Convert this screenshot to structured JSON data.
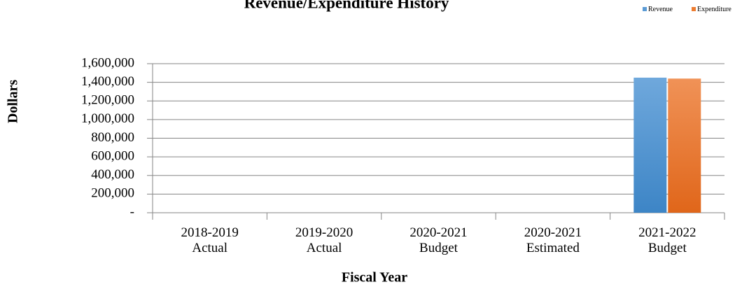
{
  "chart_data": {
    "type": "bar",
    "title": "Revenue/Expenditure History",
    "categories": [
      "2018-2019 Actual",
      "2019-2020 Actual",
      "2020-2021 Budget",
      "2020-2021 Estimated",
      "2021-2022 Budget"
    ],
    "series": [
      {
        "name": "Revenue",
        "color": "#5b9bd5",
        "values": [
          0,
          0,
          0,
          0,
          1450000
        ]
      },
      {
        "name": "Expenditure",
        "color": "#ed7d31",
        "values": [
          0,
          0,
          0,
          0,
          1440000
        ]
      }
    ],
    "x_label": "Fiscal Year",
    "y_label": "Dollars",
    "ylim": [
      0,
      1600000
    ],
    "yticks": [
      {
        "value": 0,
        "label": "-"
      },
      {
        "value": 200000,
        "label": "200,000"
      },
      {
        "value": 400000,
        "label": "400,000"
      },
      {
        "value": 600000,
        "label": "600,000"
      },
      {
        "value": 800000,
        "label": "800,000"
      },
      {
        "value": 1000000,
        "label": "1,000,000"
      },
      {
        "value": 1200000,
        "label": "1,200,000"
      },
      {
        "value": 1400000,
        "label": "1,400,000"
      },
      {
        "value": 1600000,
        "label": "1,600,000"
      }
    ],
    "grid": true,
    "legend": "top-right"
  }
}
